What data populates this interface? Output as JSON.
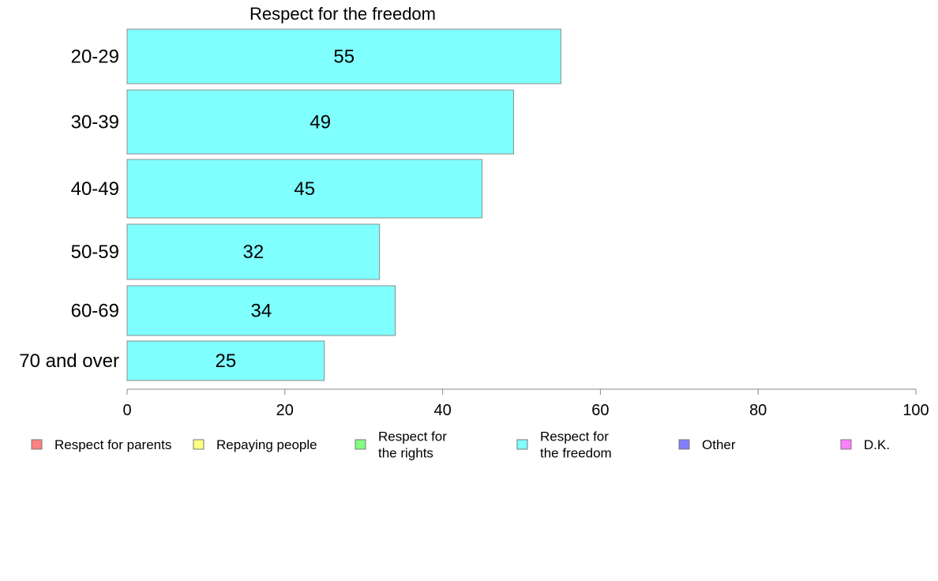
{
  "chart_data": {
    "type": "bar",
    "orientation": "horizontal",
    "title": "Respect for the freedom",
    "xlabel": "",
    "ylabel": "",
    "categories": [
      "20-29",
      "30-39",
      "40-49",
      "50-59",
      "60-69",
      "70 and over"
    ],
    "series": [
      {
        "name": "Respect for the freedom",
        "values": [
          55,
          49,
          45,
          32,
          34,
          25
        ],
        "color": "#80ffff"
      }
    ],
    "xlim": [
      0,
      100
    ],
    "xticks": [
      0,
      20,
      40,
      60,
      80,
      100
    ],
    "grid": false,
    "legend_position": "bottom",
    "legend": [
      {
        "lines": [
          "Respect for parents"
        ],
        "color": "#ff8080"
      },
      {
        "lines": [
          "Repaying people"
        ],
        "color": "#ffff80"
      },
      {
        "lines": [
          "Respect for",
          "the rights"
        ],
        "color": "#80ff80"
      },
      {
        "lines": [
          "Respect for",
          "the freedom"
        ],
        "color": "#80ffff"
      },
      {
        "lines": [
          "Other"
        ],
        "color": "#8080ff"
      },
      {
        "lines": [
          "D.K."
        ],
        "color": "#ff80ff"
      }
    ]
  }
}
